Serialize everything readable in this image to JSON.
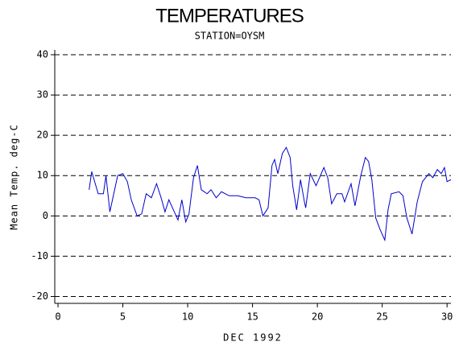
{
  "chart_data": {
    "type": "line",
    "title": "TEMPERATURES",
    "subtitle": "STATION=OYSM",
    "x_label": "DEC 1992",
    "y_label": "Mean Temp. deg-C",
    "xlim": [
      -0.25,
      30.3
    ],
    "xticks": [
      0,
      5,
      10,
      15,
      20,
      25,
      30
    ],
    "ylim": [
      -21.7,
      41.2
    ],
    "yticks": [
      -20,
      -10,
      0,
      10,
      20,
      30,
      40
    ],
    "grid": true,
    "series": [
      {
        "name": "Mean Temp",
        "color": "#0000cc",
        "x": [
          2.4,
          2.6,
          3.1,
          3.5,
          3.7,
          4.0,
          4.1,
          4.6,
          5.0,
          5.35,
          5.65,
          6.1,
          6.45,
          6.8,
          7.2,
          7.6,
          7.95,
          8.25,
          8.55,
          8.9,
          9.25,
          9.55,
          9.85,
          10.1,
          10.45,
          10.75,
          11.05,
          11.5,
          11.8,
          12.2,
          12.6,
          13.2,
          13.85,
          14.5,
          15.2,
          15.5,
          15.8,
          16.2,
          16.5,
          16.7,
          16.95,
          17.3,
          17.6,
          17.9,
          18.1,
          18.4,
          18.7,
          19.0,
          19.1,
          19.45,
          19.9,
          20.5,
          20.8,
          21.1,
          21.5,
          21.9,
          22.1,
          22.6,
          22.9,
          23.35,
          23.7,
          23.95,
          24.2,
          24.5,
          24.85,
          25.2,
          25.45,
          25.7,
          26.3,
          26.6,
          26.9,
          27.3,
          27.7,
          28.1,
          28.6,
          28.9,
          29.25,
          29.55,
          29.8,
          30.0,
          30.3
        ],
        "values": [
          6.5,
          11,
          5.5,
          5.5,
          10,
          1,
          2.5,
          10,
          10.5,
          8.5,
          4,
          0,
          0.5,
          5.5,
          4.5,
          8,
          4.5,
          1,
          4,
          1.5,
          -1,
          4,
          -1.5,
          0.5,
          9.5,
          12.5,
          6.5,
          5.5,
          6.5,
          4.5,
          6,
          5,
          5,
          4.5,
          4.5,
          4,
          0,
          2,
          12.5,
          14,
          10.5,
          15.5,
          17,
          14.5,
          7.5,
          1.5,
          9,
          3.5,
          2,
          10.5,
          7.5,
          12,
          9.5,
          3,
          5.5,
          5.5,
          3.5,
          8,
          2.5,
          10,
          14.5,
          13.5,
          9,
          -0.5,
          -3.5,
          -6,
          1.5,
          5.5,
          6,
          5,
          -0.5,
          -4.5,
          3.5,
          8.5,
          10.5,
          9.5,
          11.5,
          10.5,
          12,
          8.5,
          9
        ]
      }
    ]
  }
}
